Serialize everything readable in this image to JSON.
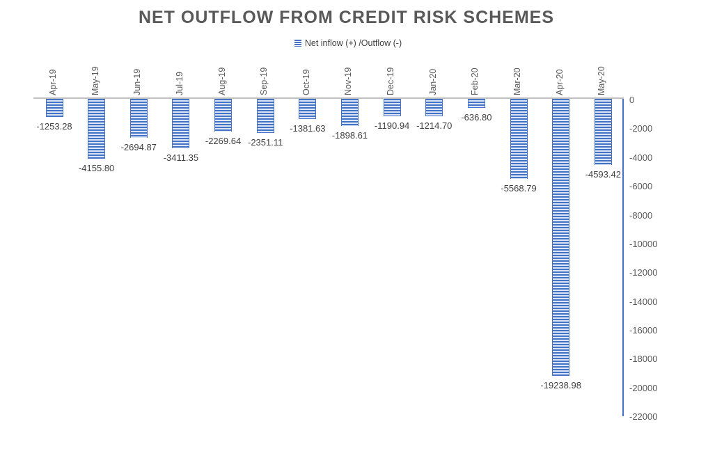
{
  "chart_data": {
    "type": "bar",
    "title": "NET OUTFLOW FROM CREDIT RISK SCHEMES",
    "legend": "Net inflow (+) /Outflow (-)",
    "categories": [
      "Apr-19",
      "May-19",
      "Jun-19",
      "Jul-19",
      "Aug-19",
      "Sep-19",
      "Oct-19",
      "Nov-19",
      "Dec-19",
      "Jan-20",
      "Feb-20",
      "Mar-20",
      "Apr-20",
      "May-20"
    ],
    "values": [
      -1253.28,
      -4155.8,
      -2694.87,
      -3411.35,
      -2269.64,
      -2351.11,
      -1381.63,
      -1898.61,
      -1190.94,
      -1214.7,
      -636.8,
      -5568.79,
      -19238.98,
      -4593.42
    ],
    "data_labels": [
      "-1253.28",
      "-4155.80",
      "-2694.87",
      "-3411.35",
      "-2269.64",
      "-2351.11",
      "-1381.63",
      "-1898.61",
      "-1190.94",
      "-1214.70",
      "-636.80",
      "-5568.79",
      "-19238.98",
      "-4593.42"
    ],
    "y_tick_labels": [
      "0",
      "-2000",
      "-4000",
      "-6000",
      "-8000",
      "-10000",
      "-12000",
      "-14000",
      "-16000",
      "-18000",
      "-20000",
      "-22000"
    ],
    "y_tick_values": [
      0,
      -2000,
      -4000,
      -6000,
      -8000,
      -10000,
      -12000,
      -14000,
      -16000,
      -18000,
      -20000,
      -22000
    ],
    "ylim": [
      -22000,
      0
    ],
    "grid": false,
    "legend_position": "top",
    "colors": {
      "bar_stripe_dark": "#4472C4",
      "bar_stripe_light": "#dbe5f6",
      "axis_line": "#4472C4",
      "zero_line": "#BFBFBF",
      "title_text": "#595959",
      "axis_text": "#595959",
      "data_label_text": "#404040"
    }
  }
}
